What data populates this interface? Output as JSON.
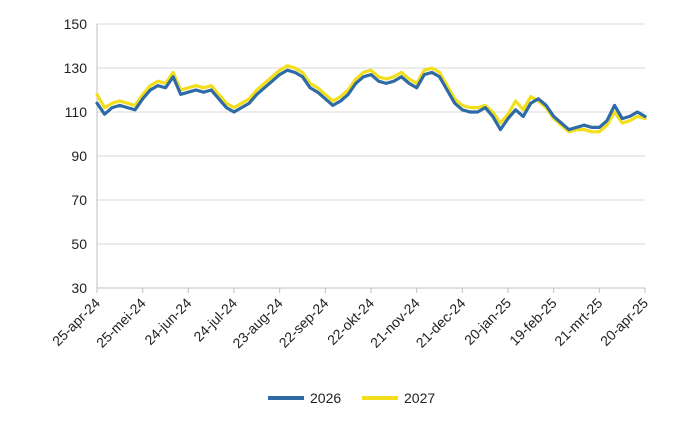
{
  "chart_data": {
    "type": "line",
    "title": "",
    "xlabel": "",
    "ylabel": "",
    "ylim": [
      30,
      150
    ],
    "yticks": [
      30,
      50,
      70,
      90,
      110,
      130,
      150
    ],
    "x_tick_labels": [
      "25-apr-24",
      "25-mei-24",
      "24-jun-24",
      "24-jul-24",
      "23-aug-24",
      "22-sep-24",
      "22-okt-24",
      "21-nov-24",
      "21-dec-24",
      "20-jan-25",
      "19-feb-25",
      "21-mrt-25",
      "20-apr-25"
    ],
    "grid": "horizontal",
    "legend_position": "bottom",
    "series": [
      {
        "name": "2026",
        "color": "#2e6aa6",
        "values": [
          114,
          109,
          112,
          113,
          112,
          111,
          116,
          120,
          122,
          121,
          126,
          118,
          119,
          120,
          119,
          120,
          116,
          112,
          110,
          112,
          114,
          118,
          121,
          124,
          127,
          129,
          128,
          126,
          121,
          119,
          116,
          113,
          115,
          118,
          123,
          126,
          127,
          124,
          123,
          124,
          126,
          123,
          121,
          127,
          128,
          126,
          120,
          114,
          111,
          110,
          110,
          112,
          108,
          102,
          107,
          111,
          108,
          114,
          116,
          113,
          108,
          105,
          102,
          103,
          104,
          103,
          103,
          106,
          113,
          107,
          108,
          110,
          108
        ]
      },
      {
        "name": "2027",
        "color": "#f2de1a",
        "values": [
          118,
          112,
          114,
          115,
          114,
          113,
          118,
          122,
          124,
          123,
          128,
          120,
          121,
          122,
          121,
          122,
          118,
          114,
          112,
          114,
          116,
          120,
          123,
          126,
          129,
          131,
          130,
          128,
          123,
          121,
          118,
          115,
          117,
          120,
          125,
          128,
          129,
          126,
          125,
          126,
          128,
          125,
          123,
          129,
          130,
          128,
          122,
          116,
          113,
          112,
          112,
          113,
          110,
          105,
          109,
          115,
          111,
          117,
          115,
          112,
          107,
          104,
          101,
          102,
          102,
          101,
          101,
          104,
          110,
          105,
          106,
          108,
          107
        ]
      }
    ]
  }
}
